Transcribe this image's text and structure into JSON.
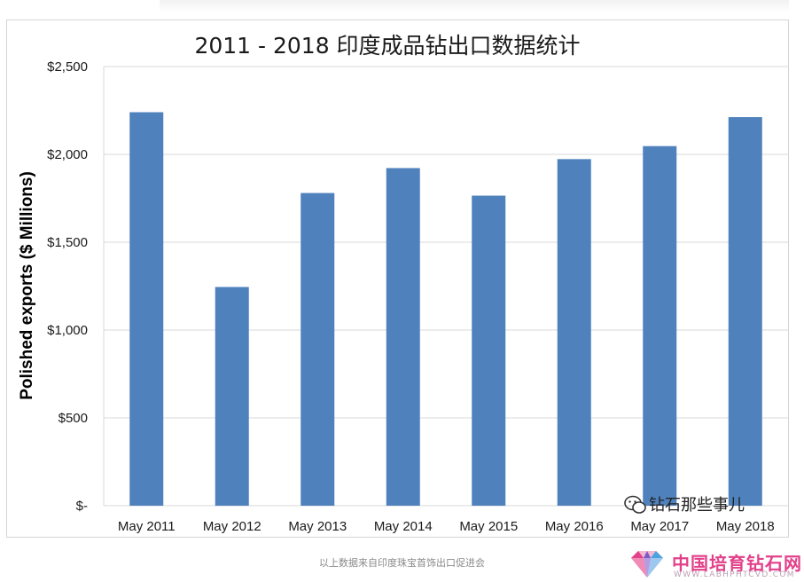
{
  "chart_data": {
    "type": "bar",
    "title": "2011 - 2018 印度成品钻出口数据统计",
    "ylabel": "Polished exports ($ Millions)",
    "xlabel": "",
    "categories": [
      "May 2011",
      "May 2012",
      "May 2013",
      "May 2014",
      "May 2015",
      "May 2016",
      "May 2017",
      "May 2018"
    ],
    "values": [
      2240,
      1245,
      1780,
      1922,
      1765,
      1973,
      2047,
      2212
    ],
    "ylim": [
      0,
      2500
    ],
    "yticks": [
      0,
      500,
      1000,
      1500,
      2000,
      2500
    ],
    "ytick_labels": [
      "$-",
      "$500",
      "$1,000",
      "$1,500",
      "$2,000",
      "$2,500"
    ],
    "grid": true,
    "legend": "none",
    "bar_color": "#4f81bd"
  },
  "watermark": {
    "label": "钻石那些事儿",
    "icon": "wechat-icon"
  },
  "caption": "以上数据来自印度珠宝首饰出口促进会",
  "logo": {
    "name": "中国培育钻石网",
    "url": "WWW.LABHPHTCVD.COM",
    "icon": "diamond-icon",
    "colors": [
      "#e2418a",
      "#7b5cc4",
      "#4aa3df"
    ]
  }
}
